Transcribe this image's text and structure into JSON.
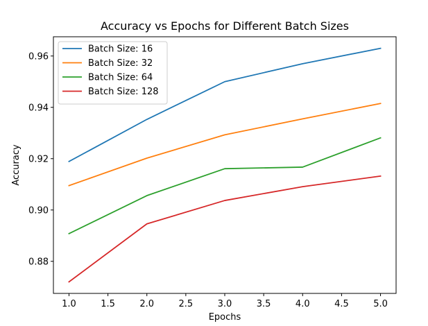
{
  "chart_data": {
    "type": "line",
    "title": "Accuracy vs Epochs for Different Batch Sizes",
    "xlabel": "Epochs",
    "ylabel": "Accuracy",
    "x": [
      1,
      2,
      3,
      4,
      5
    ],
    "xlim": [
      0.8,
      5.2
    ],
    "ylim": [
      0.8675,
      0.9675
    ],
    "xticks": [
      1.0,
      1.5,
      2.0,
      2.5,
      3.0,
      3.5,
      4.0,
      4.5,
      5.0
    ],
    "xtick_labels": [
      "1.0",
      "1.5",
      "2.0",
      "2.5",
      "3.0",
      "3.5",
      "4.0",
      "4.5",
      "5.0"
    ],
    "yticks": [
      0.88,
      0.9,
      0.92,
      0.94,
      0.96
    ],
    "ytick_labels": [
      "0.88",
      "0.90",
      "0.92",
      "0.94",
      "0.96"
    ],
    "grid": false,
    "legend_position": "top-left",
    "series": [
      {
        "name": "Batch Size: 16",
        "color": "#1f77b4",
        "values": [
          0.9189,
          0.9353,
          0.95,
          0.957,
          0.963
        ]
      },
      {
        "name": "Batch Size: 32",
        "color": "#ff7f0e",
        "values": [
          0.9095,
          0.9202,
          0.9293,
          0.9355,
          0.9415
        ]
      },
      {
        "name": "Batch Size: 64",
        "color": "#2ca02c",
        "values": [
          0.8908,
          0.9056,
          0.9161,
          0.9167,
          0.9281
        ]
      },
      {
        "name": "Batch Size: 128",
        "color": "#d62728",
        "values": [
          0.872,
          0.8946,
          0.9037,
          0.9091,
          0.9132
        ]
      }
    ]
  }
}
